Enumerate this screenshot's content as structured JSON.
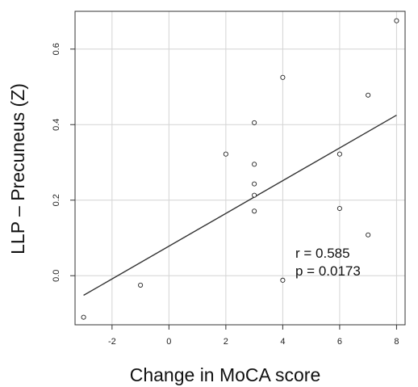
{
  "chart_data": {
    "type": "scatter",
    "title": "",
    "xlabel": "Change in MoCA score",
    "ylabel": "LLP – Precuneus (Z)",
    "xlim": [
      -3.3,
      8.3
    ],
    "ylim": [
      -0.13,
      0.7
    ],
    "xticks": [
      -2,
      0,
      2,
      4,
      6,
      8
    ],
    "yticks": [
      0.0,
      0.2,
      0.4,
      0.6
    ],
    "xtick_labels": [
      "-2",
      "0",
      "2",
      "4",
      "6",
      "8"
    ],
    "ytick_labels": [
      "0.0",
      "0.2",
      "0.4",
      "0.6"
    ],
    "grid": true,
    "series": [
      {
        "x": [
          -3,
          -1,
          2,
          3,
          3,
          3,
          3,
          3,
          4,
          4,
          6,
          6,
          7,
          7,
          8
        ],
        "y": [
          -0.11,
          -0.025,
          0.322,
          0.405,
          0.295,
          0.243,
          0.213,
          0.171,
          0.525,
          -0.012,
          0.322,
          0.178,
          0.478,
          0.108,
          0.675
        ]
      }
    ],
    "fit_line": {
      "x": [
        -3,
        8
      ],
      "y": [
        -0.052,
        0.425
      ]
    },
    "annotations": {
      "r": "r = 0.585",
      "p": "p = 0.0173"
    }
  }
}
